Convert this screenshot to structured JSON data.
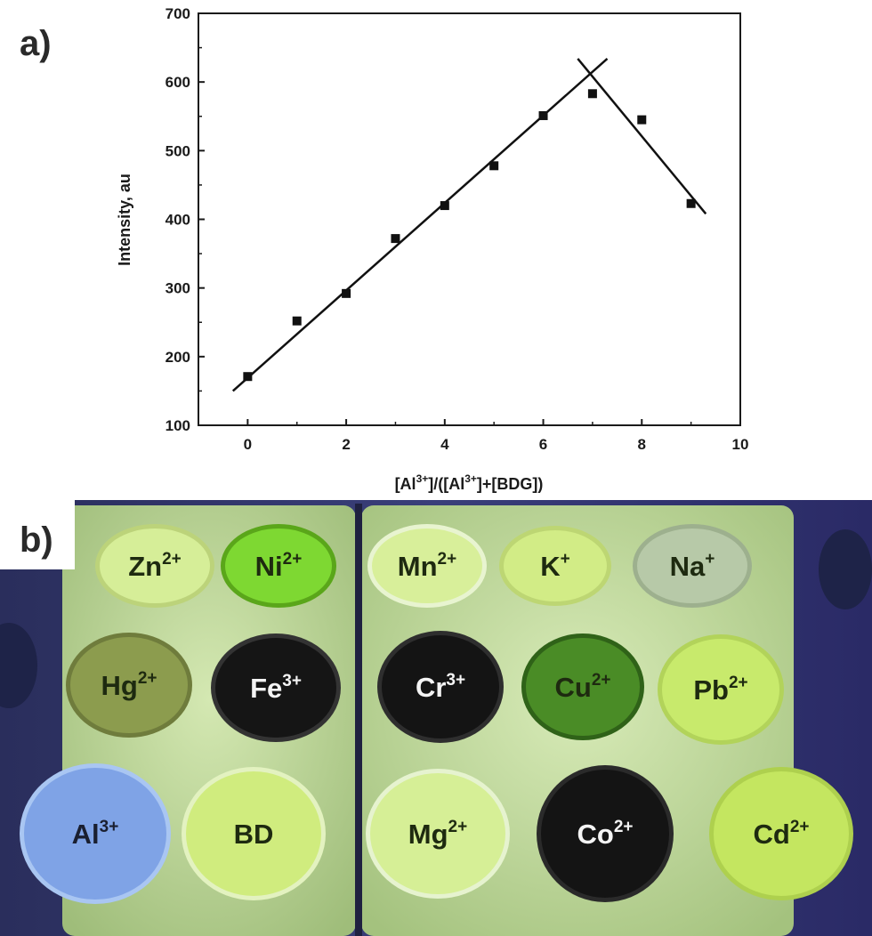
{
  "panel_a_label": "a)",
  "panel_b_label": "b)",
  "chart_data": {
    "type": "scatter",
    "xlabel_parts": [
      "[Al",
      "3+",
      "]/([Al",
      "3+",
      "]+[BDG])"
    ],
    "ylabel": "Intensity, au",
    "xlim": [
      -1,
      10
    ],
    "ylim": [
      100,
      700
    ],
    "xticks": [
      0,
      2,
      4,
      6,
      8,
      10
    ],
    "yticks": [
      100,
      200,
      300,
      400,
      500,
      600,
      700
    ],
    "points": [
      {
        "x": 0,
        "y": 171
      },
      {
        "x": 1,
        "y": 252
      },
      {
        "x": 2,
        "y": 292
      },
      {
        "x": 3,
        "y": 372
      },
      {
        "x": 4,
        "y": 420
      },
      {
        "x": 5,
        "y": 478
      },
      {
        "x": 6,
        "y": 551
      },
      {
        "x": 7,
        "y": 583
      },
      {
        "x": 8,
        "y": 545
      },
      {
        "x": 9,
        "y": 423
      }
    ],
    "fit_lines": [
      {
        "x": [
          -0.3,
          7.3
        ],
        "y": [
          150,
          634
        ]
      },
      {
        "x": [
          6.7,
          9.3
        ],
        "y": [
          634,
          408
        ]
      }
    ]
  },
  "wells": [
    {
      "ion": "Zn",
      "charge": "2+",
      "fill": "#d6ee98",
      "rim": "#bcd37a",
      "text_color": "#1e2a10"
    },
    {
      "ion": "Ni",
      "charge": "2+",
      "fill": "#7ed832",
      "rim": "#5aa61a",
      "text_color": "#1e2a10"
    },
    {
      "ion": "Mn",
      "charge": "2+",
      "fill": "#d8ef9a",
      "rim": "#e8f4d0",
      "text_color": "#1e2a10"
    },
    {
      "ion": "K",
      "charge": "+",
      "fill": "#d2ec86",
      "rim": "#bdd673",
      "text_color": "#1e2a10"
    },
    {
      "ion": "Na",
      "charge": "+",
      "fill": "#b7c9a8",
      "rim": "#9db08e",
      "text_color": "#1e2a10"
    },
    {
      "ion": "Hg",
      "charge": "2+",
      "fill": "#8c9c4e",
      "rim": "#6f7c3c",
      "text_color": "#1e2a10"
    },
    {
      "ion": "Fe",
      "charge": "3+",
      "fill": "#151515",
      "rim": "#333333",
      "text_color": "#f4f4f4"
    },
    {
      "ion": "Cr",
      "charge": "3+",
      "fill": "#141414",
      "rim": "#2e2e2e",
      "text_color": "#f4f4f4"
    },
    {
      "ion": "Cu",
      "charge": "2+",
      "fill": "#4a8c26",
      "rim": "#2f6218",
      "text_color": "#1e2a10"
    },
    {
      "ion": "Pb",
      "charge": "2+",
      "fill": "#c8ea6c",
      "rim": "#b2d35a",
      "text_color": "#1e2a10"
    },
    {
      "ion": "Al",
      "charge": "3+",
      "fill": "#7fa3e6",
      "rim": "#a9c6f2",
      "text_color": "#1a1f30"
    },
    {
      "ion": "BD",
      "charge": "",
      "fill": "#d0ec7e",
      "rim": "#e3f2c0",
      "text_color": "#1e2a10"
    },
    {
      "ion": "Mg",
      "charge": "2+",
      "fill": "#d6ef96",
      "rim": "#e6f3cf",
      "text_color": "#1e2a10"
    },
    {
      "ion": "Co",
      "charge": "2+",
      "fill": "#141414",
      "rim": "#2a2a2a",
      "text_color": "#f4f4f4"
    },
    {
      "ion": "Cd",
      "charge": "2+",
      "fill": "#c4e660",
      "rim": "#aed04e",
      "text_color": "#1e2a10"
    }
  ],
  "colors": {
    "axis": "#1a1a1a",
    "plate_bg": "#2c2f6e",
    "plate_left": "#c2dca0",
    "plate_right": "#c6dfa4"
  }
}
